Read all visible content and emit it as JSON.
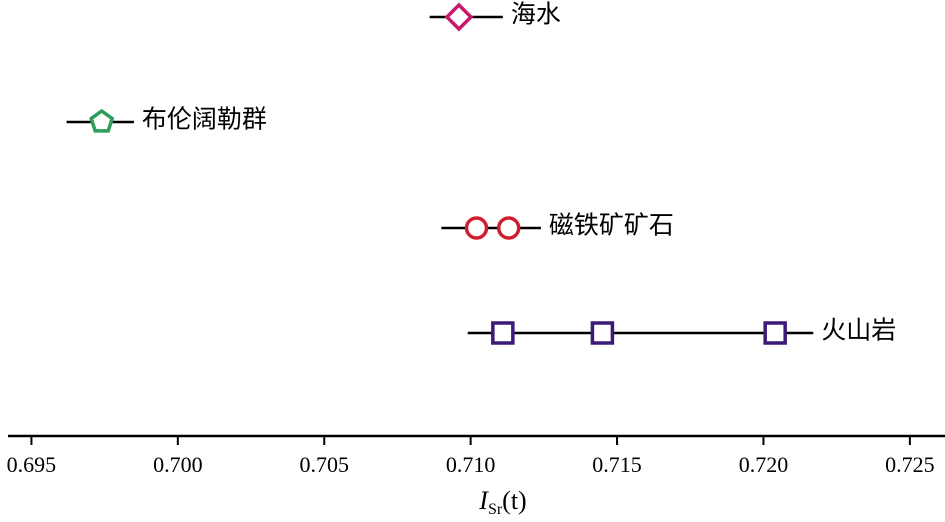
{
  "chart_data": {
    "type": "range",
    "xlim": [
      0.6942,
      0.7262
    ],
    "xticks": [
      0.695,
      {
        "value": 0.7,
        "label": "0.700"
      },
      0.705,
      {
        "value": 0.71,
        "label": "0.710"
      },
      0.715,
      {
        "value": 0.72,
        "label": "0.720"
      },
      0.725
    ],
    "xlabel": {
      "main": "I",
      "sub": "Sr",
      "suffix": "(t)"
    },
    "series": [
      {
        "name": "海水",
        "color": "#c8186e",
        "marker": "diamond",
        "range": [
          0.7086,
          0.7111
        ],
        "values": [
          0.7096
        ]
      },
      {
        "name": "布伦阔勒群",
        "color": "#2e9e5b",
        "marker": "pentagon",
        "range": [
          0.6962,
          0.6985
        ],
        "values": [
          0.6974
        ]
      },
      {
        "name": "磁铁矿矿石",
        "color": "#d01c2e",
        "marker": "circle",
        "range": [
          0.709,
          0.7124
        ],
        "values": [
          0.7102,
          0.7113
        ]
      },
      {
        "name": "火山岩",
        "color": "#3b1a78",
        "marker": "square",
        "range": [
          0.7099,
          0.7217
        ],
        "values": [
          0.7111,
          0.7145,
          0.7204
        ]
      }
    ]
  }
}
